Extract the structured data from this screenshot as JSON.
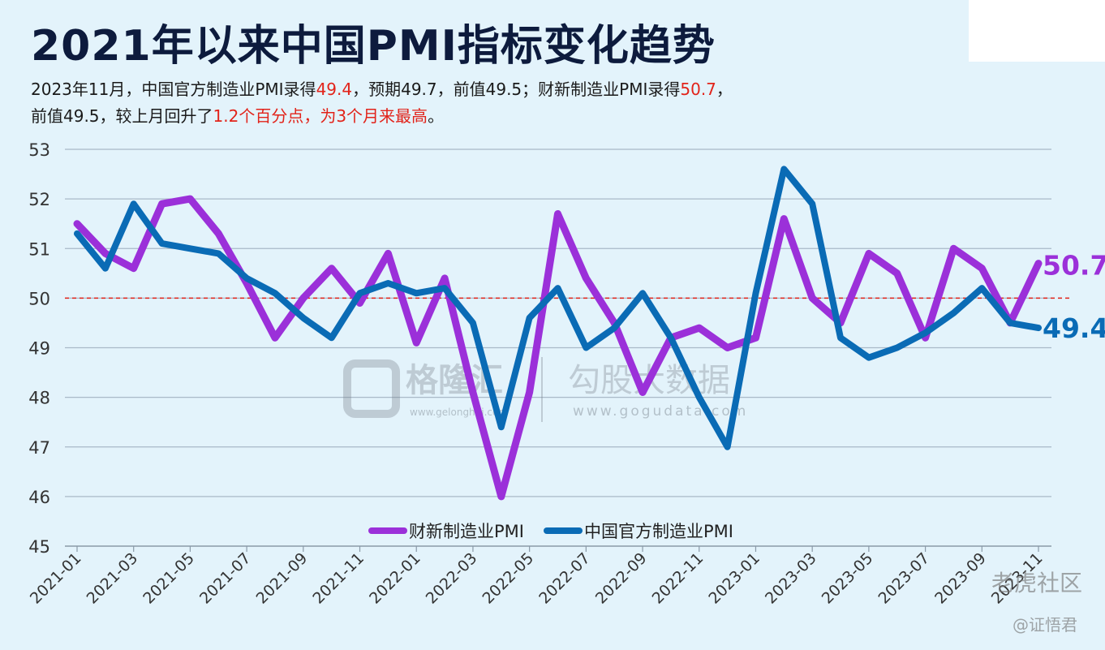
{
  "header": {
    "title": "2021年以来中国PMI指标变化趋势",
    "sub1_parts": [
      "2023年11月，中国官方制造业PMI录得",
      "49.4",
      "，预期49.7，前值49.5；财新制造业PMI录得",
      "50.7",
      "，"
    ],
    "sub2_parts": [
      "前值49.5，较上月回升了",
      "1.2个百分点，为3个月来最高",
      "。"
    ]
  },
  "colors": {
    "caixin": "#9b30d9",
    "official": "#0a6bb5",
    "refline": "#e2231a",
    "grid": "#a9b9c8",
    "axis_text": "#333333"
  },
  "watermarks": {
    "g1_brand": "格隆汇",
    "g1_url": "www.gelonghui.com",
    "g2_brand": "勾股大数据",
    "g2_url": "www.gogudata.com",
    "corner1": "老虎社区",
    "corner2": "@证悟君"
  },
  "chart_data": {
    "type": "line",
    "ylim": [
      45,
      53
    ],
    "yticks": [
      45,
      46,
      47,
      48,
      49,
      50,
      51,
      52,
      53
    ],
    "reference_line": 50,
    "x_tick_labels": [
      "2021-01",
      "2021-03",
      "2021-05",
      "2021-07",
      "2021-09",
      "2021-11",
      "2022-01",
      "2022-03",
      "2022-05",
      "2022-07",
      "2022-09",
      "2022-11",
      "2023-01",
      "2023-03",
      "2023-05",
      "2023-07",
      "2023-09",
      "2023-11"
    ],
    "x": [
      "2021-01",
      "2021-02",
      "2021-03",
      "2021-04",
      "2021-05",
      "2021-06",
      "2021-07",
      "2021-08",
      "2021-09",
      "2021-10",
      "2021-11",
      "2021-12",
      "2022-01",
      "2022-02",
      "2022-03",
      "2022-04",
      "2022-05",
      "2022-06",
      "2022-07",
      "2022-08",
      "2022-09",
      "2022-10",
      "2022-11",
      "2022-12",
      "2023-01",
      "2023-02",
      "2023-03",
      "2023-04",
      "2023-05",
      "2023-06",
      "2023-07",
      "2023-08",
      "2023-09",
      "2023-10",
      "2023-11"
    ],
    "series": [
      {
        "name": "财新制造业PMI",
        "values": [
          51.5,
          50.9,
          50.6,
          51.9,
          52.0,
          51.3,
          50.3,
          49.2,
          50.0,
          50.6,
          49.9,
          50.9,
          49.1,
          50.4,
          48.1,
          46.0,
          48.1,
          51.7,
          50.4,
          49.5,
          48.1,
          49.2,
          49.4,
          49.0,
          49.2,
          51.6,
          50.0,
          49.5,
          50.9,
          50.5,
          49.2,
          51.0,
          50.6,
          49.5,
          50.7
        ],
        "end_label": "50.7"
      },
      {
        "name": "中国官方制造业PMI",
        "values": [
          51.3,
          50.6,
          51.9,
          51.1,
          51.0,
          50.9,
          50.4,
          50.1,
          49.6,
          49.2,
          50.1,
          50.3,
          50.1,
          50.2,
          49.5,
          47.4,
          49.6,
          50.2,
          49.0,
          49.4,
          50.1,
          49.2,
          48.0,
          47.0,
          50.1,
          52.6,
          51.9,
          49.2,
          48.8,
          49.0,
          49.3,
          49.7,
          50.2,
          49.5,
          49.4
        ],
        "end_label": "49.4"
      }
    ],
    "legend": "bottom-center"
  }
}
